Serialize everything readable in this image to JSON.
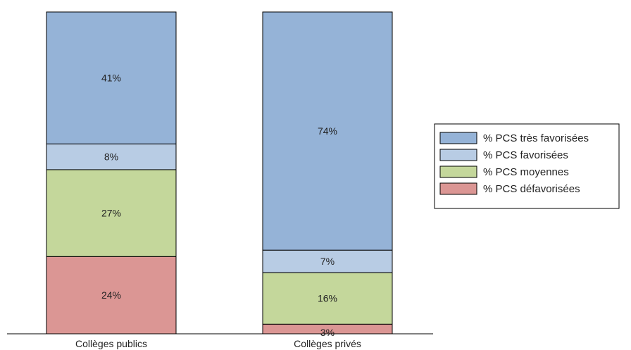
{
  "chart_data": {
    "type": "bar",
    "stacked": true,
    "normalized": true,
    "categories": [
      "Collèges publics",
      "Collèges privés"
    ],
    "series": [
      {
        "name": "% PCS défavorisées",
        "values": [
          24,
          3
        ],
        "labels": [
          "24%",
          "3%"
        ],
        "color": "#db9694"
      },
      {
        "name": "% PCS moyennes",
        "values": [
          27,
          16
        ],
        "labels": [
          "27%",
          "16%"
        ],
        "color": "#c4d79b"
      },
      {
        "name": "% PCS favorisées",
        "values": [
          8,
          7
        ],
        "labels": [
          "8%",
          "7%"
        ],
        "color": "#b8cce4"
      },
      {
        "name": "% PCS très favorisées",
        "values": [
          41,
          74
        ],
        "labels": [
          "41%",
          "74%"
        ],
        "color": "#95b3d7"
      }
    ],
    "legend": {
      "placement": "right",
      "order": [
        "% PCS très favorisées",
        "% PCS favorisées",
        "% PCS moyennes",
        "% PCS défavorisées"
      ]
    },
    "ylim": [
      0,
      100
    ],
    "grid": false,
    "title": "",
    "xlabel": "",
    "ylabel": ""
  }
}
